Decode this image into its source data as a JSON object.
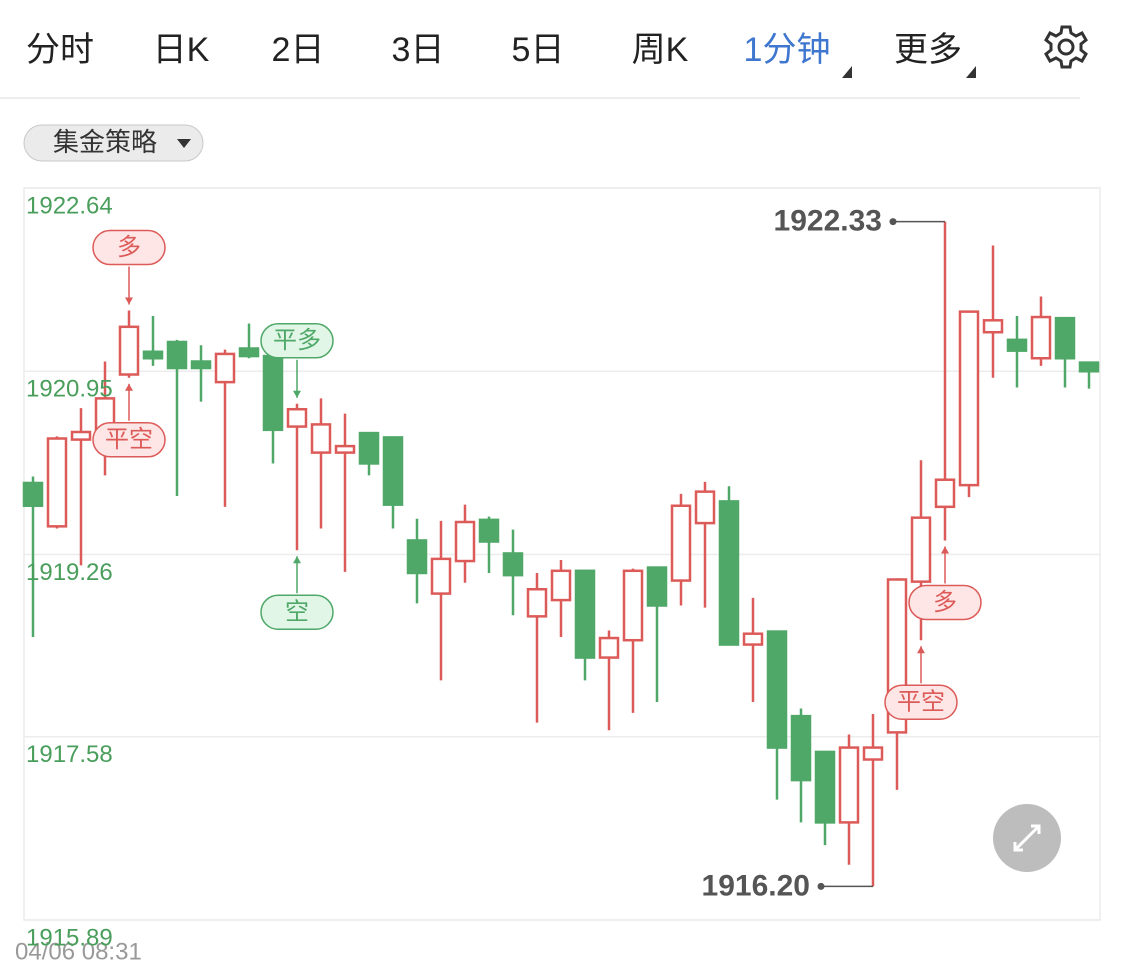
{
  "tabs": {
    "items": [
      "分时",
      "日K",
      "2日",
      "3日",
      "5日",
      "周K",
      "1分钟",
      "更多"
    ],
    "active": "1分钟",
    "with_menu": [
      "1分钟",
      "更多"
    ]
  },
  "strategy_dropdown": "集金策略",
  "chart_data": {
    "type": "candlestick",
    "open": [
      1919.92,
      1919.52,
      1920.32,
      1920.39,
      1920.92,
      1921.13,
      1921.22,
      1921.04,
      1920.85,
      1921.16,
      1921.09,
      1920.44,
      1920.2,
      1920.2,
      1920.38,
      1920.34,
      1919.39,
      1918.9,
      1919.2,
      1919.58,
      1919.27,
      1918.69,
      1918.84,
      1919.11,
      1918.31,
      1918.47,
      1919.14,
      1919.02,
      1919.55,
      1919.75,
      1918.43,
      1918.55,
      1917.77,
      1917.44,
      1916.79,
      1917.37,
      1917.62,
      1919.01,
      1919.7,
      1919.9,
      1921.31,
      1921.24,
      1921.07,
      1921.44,
      1921.03
    ],
    "high": [
      1919.98,
      1920.35,
      1920.61,
      1921.04,
      1921.51,
      1921.46,
      1921.24,
      1921.19,
      1921.15,
      1921.39,
      1921.09,
      1920.65,
      1920.7,
      1920.56,
      1920.39,
      1920.34,
      1919.59,
      1919.57,
      1919.72,
      1919.61,
      1919.49,
      1919.09,
      1919.21,
      1919.11,
      1918.56,
      1919.13,
      1919.15,
      1919.82,
      1919.93,
      1919.89,
      1918.86,
      1918.56,
      1917.84,
      1917.44,
      1917.6,
      1917.79,
      1919.04,
      1920.13,
      1922.33,
      1921.5,
      1922.11,
      1921.46,
      1921.64,
      1921.44,
      1921.03
    ],
    "low": [
      1918.5,
      1919.5,
      1919.16,
      1919.99,
      1920.89,
      1921.0,
      1919.8,
      1920.67,
      1919.7,
      1921.07,
      1920.1,
      1919.3,
      1919.5,
      1919.1,
      1919.99,
      1919.5,
      1918.81,
      1918.1,
      1919.0,
      1919.09,
      1918.7,
      1917.71,
      1918.5,
      1918.1,
      1917.64,
      1917.8,
      1917.9,
      1918.79,
      1918.77,
      1918.43,
      1917.9,
      1917.0,
      1916.79,
      1916.58,
      1916.4,
      1916.2,
      1917.09,
      1918.47,
      1919.39,
      1919.79,
      1920.89,
      1920.8,
      1921.0,
      1920.8,
      1920.79
    ],
    "close": [
      1919.71,
      1920.33,
      1920.39,
      1920.7,
      1921.36,
      1921.07,
      1920.98,
      1920.98,
      1921.11,
      1921.09,
      1920.41,
      1920.6,
      1920.46,
      1920.26,
      1920.1,
      1919.72,
      1919.09,
      1919.22,
      1919.56,
      1919.38,
      1919.07,
      1918.94,
      1919.11,
      1918.31,
      1918.49,
      1919.11,
      1918.79,
      1919.71,
      1919.84,
      1918.43,
      1918.53,
      1917.48,
      1917.18,
      1916.79,
      1917.48,
      1917.48,
      1919.03,
      1919.6,
      1919.95,
      1921.5,
      1921.42,
      1921.14,
      1921.45,
      1921.07,
      1920.95
    ],
    "up_color": "#dc5a58",
    "down_color": "#4fa868",
    "ylim": [
      1915.89,
      1922.64
    ],
    "yticks": [
      1922.64,
      1920.95,
      1919.26,
      1917.58,
      1915.89
    ],
    "grid": true,
    "signals_above": [
      null,
      null,
      null,
      null,
      {
        "text": "多",
        "color": "#dc5a58"
      },
      null,
      null,
      null,
      null,
      null,
      null,
      {
        "text": "平多",
        "color": "#4fa868"
      },
      null,
      null,
      null,
      null,
      null,
      null,
      null,
      null,
      null,
      null,
      null,
      null,
      null,
      null,
      null,
      null,
      null,
      null,
      null,
      null,
      null,
      null,
      null,
      null,
      null,
      null,
      null,
      null,
      null,
      null,
      null,
      null,
      null
    ],
    "signals_below": [
      null,
      null,
      null,
      null,
      {
        "text": "平空",
        "color": "#dc5a58"
      },
      null,
      null,
      null,
      null,
      null,
      null,
      {
        "text": "空",
        "color": "#4fa868"
      },
      null,
      null,
      null,
      null,
      null,
      null,
      null,
      null,
      null,
      null,
      null,
      null,
      null,
      null,
      null,
      null,
      null,
      null,
      null,
      null,
      null,
      null,
      null,
      null,
      null,
      {
        "text": "平空",
        "color": "#dc5a58"
      },
      {
        "text": "多",
        "color": "#dc5a58"
      },
      null,
      null,
      null,
      null,
      null,
      null
    ],
    "max_label": "1922.33",
    "min_label": "1916.20"
  },
  "start_time": "04/06 08:31"
}
